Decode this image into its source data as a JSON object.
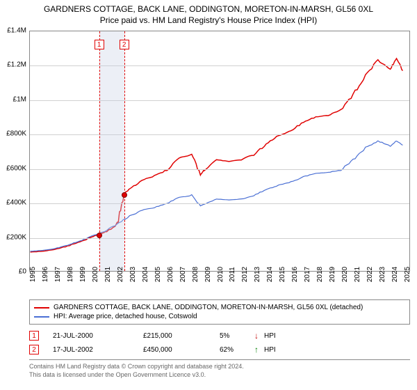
{
  "title": "GARDNERS COTTAGE, BACK LANE, ODDINGTON, MORETON-IN-MARSH, GL56 0XL",
  "subtitle": "Price paid vs. HM Land Registry's House Price Index (HPI)",
  "chart": {
    "type": "line",
    "background_color": "#ffffff",
    "grid_color": "#d0d0d0",
    "border_color": "#888888",
    "xlim": [
      1995,
      2025.5
    ],
    "ylim": [
      0,
      1400000
    ],
    "y_ticks": [
      0,
      200000,
      400000,
      600000,
      800000,
      1000000,
      1200000,
      1400000
    ],
    "y_tick_labels": [
      "£0",
      "£200K",
      "£400K",
      "£600K",
      "£800K",
      "£1M",
      "£1.2M",
      "£1.4M"
    ],
    "x_ticks": [
      1995,
      1996,
      1997,
      1998,
      1999,
      2000,
      2001,
      2002,
      2003,
      2004,
      2005,
      2006,
      2007,
      2008,
      2009,
      2010,
      2011,
      2012,
      2013,
      2014,
      2015,
      2016,
      2017,
      2018,
      2019,
      2020,
      2021,
      2022,
      2023,
      2024,
      2025
    ],
    "label_fontsize": 10,
    "marker_band": {
      "start": 2000.55,
      "end": 2002.55,
      "fill": "rgba(200,210,230,0.35)"
    },
    "markers": [
      {
        "index": "1",
        "x": 2000.55,
        "y": 215000
      },
      {
        "index": "2",
        "x": 2002.55,
        "y": 450000
      }
    ],
    "marker_line_color": "#e00000",
    "marker_dot_fill": "#e00000",
    "marker_dot_border": "#800000",
    "series": [
      {
        "name": "GARDNERS COTTAGE, BACK LANE, ODDINGTON, MORETON-IN-MARSH, GL56 0XL (detached)",
        "color": "#e00000",
        "width": 1.5,
        "data": [
          [
            1995,
            110000
          ],
          [
            1996,
            115000
          ],
          [
            1997,
            125000
          ],
          [
            1998,
            145000
          ],
          [
            1999,
            170000
          ],
          [
            2000,
            200000
          ],
          [
            2000.55,
            215000
          ],
          [
            2001,
            225000
          ],
          [
            2002,
            270000
          ],
          [
            2002.55,
            450000
          ],
          [
            2003,
            480000
          ],
          [
            2004,
            530000
          ],
          [
            2005,
            555000
          ],
          [
            2006,
            590000
          ],
          [
            2007,
            660000
          ],
          [
            2008,
            680000
          ],
          [
            2008.7,
            560000
          ],
          [
            2009,
            590000
          ],
          [
            2010,
            650000
          ],
          [
            2011,
            640000
          ],
          [
            2012,
            650000
          ],
          [
            2013,
            680000
          ],
          [
            2014,
            740000
          ],
          [
            2015,
            790000
          ],
          [
            2016,
            820000
          ],
          [
            2017,
            870000
          ],
          [
            2018,
            900000
          ],
          [
            2019,
            910000
          ],
          [
            2020,
            940000
          ],
          [
            2021,
            1030000
          ],
          [
            2022,
            1140000
          ],
          [
            2023,
            1230000
          ],
          [
            2024,
            1180000
          ],
          [
            2024.5,
            1240000
          ],
          [
            2025,
            1170000
          ]
        ]
      },
      {
        "name": "HPI: Average price, detached house, Cotswold",
        "color": "#4a6fd4",
        "width": 1.2,
        "data": [
          [
            1995,
            115000
          ],
          [
            1996,
            120000
          ],
          [
            1997,
            130000
          ],
          [
            1998,
            150000
          ],
          [
            1999,
            175000
          ],
          [
            2000,
            205000
          ],
          [
            2001,
            230000
          ],
          [
            2002,
            275000
          ],
          [
            2003,
            320000
          ],
          [
            2004,
            355000
          ],
          [
            2005,
            370000
          ],
          [
            2006,
            395000
          ],
          [
            2007,
            430000
          ],
          [
            2008,
            440000
          ],
          [
            2008.7,
            380000
          ],
          [
            2009,
            390000
          ],
          [
            2010,
            420000
          ],
          [
            2011,
            415000
          ],
          [
            2012,
            420000
          ],
          [
            2013,
            440000
          ],
          [
            2014,
            475000
          ],
          [
            2015,
            500000
          ],
          [
            2016,
            520000
          ],
          [
            2017,
            550000
          ],
          [
            2018,
            570000
          ],
          [
            2019,
            575000
          ],
          [
            2020,
            590000
          ],
          [
            2021,
            650000
          ],
          [
            2022,
            720000
          ],
          [
            2023,
            760000
          ],
          [
            2024,
            730000
          ],
          [
            2024.5,
            760000
          ],
          [
            2025,
            735000
          ]
        ]
      }
    ]
  },
  "legend": {
    "items": [
      {
        "color": "#e00000",
        "label": "GARDNERS COTTAGE, BACK LANE, ODDINGTON, MORETON-IN-MARSH, GL56 0XL (detached)"
      },
      {
        "color": "#4a6fd4",
        "label": "HPI: Average price, detached house, Cotswold"
      }
    ]
  },
  "sales": [
    {
      "index": "1",
      "date": "21-JUL-2000",
      "price": "£215,000",
      "pct": "5%",
      "arrow": "↓",
      "arrow_color": "#c00000",
      "vs": "HPI"
    },
    {
      "index": "2",
      "date": "17-JUL-2002",
      "price": "£450,000",
      "pct": "62%",
      "arrow": "↑",
      "arrow_color": "#008000",
      "vs": "HPI"
    }
  ],
  "footer": {
    "line1": "Contains HM Land Registry data © Crown copyright and database right 2024.",
    "line2": "This data is licensed under the Open Government Licence v3.0."
  }
}
